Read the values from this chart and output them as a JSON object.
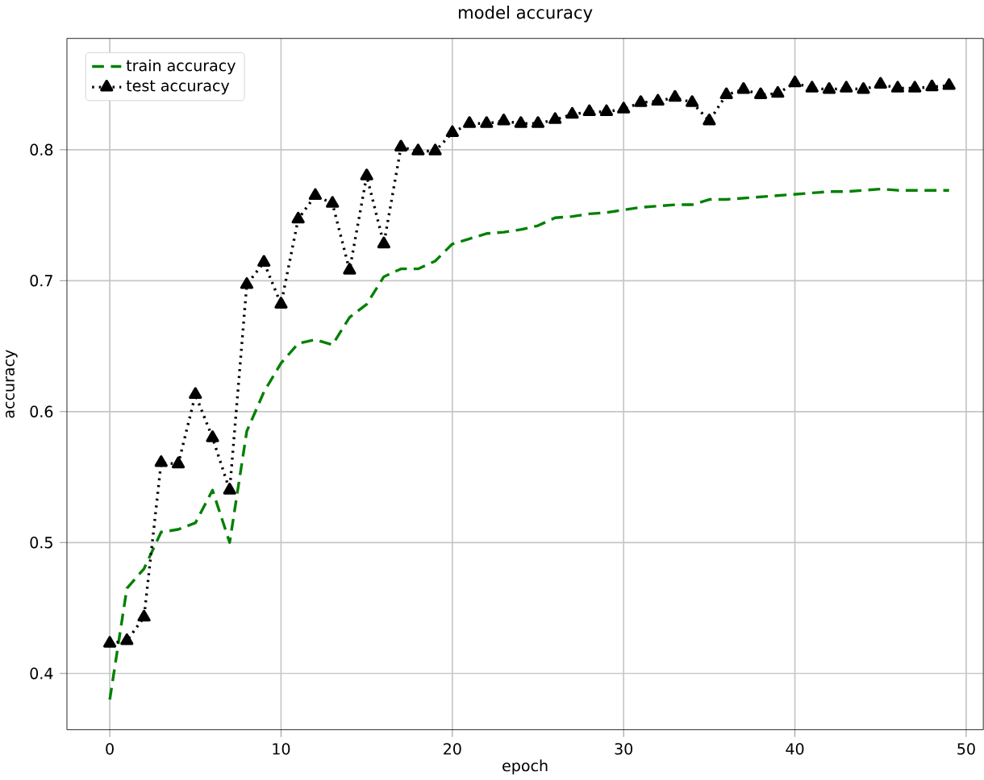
{
  "chart_data": {
    "type": "line",
    "title": "model accuracy",
    "xlabel": "epoch",
    "ylabel": "accuracy",
    "x": [
      0,
      1,
      2,
      3,
      4,
      5,
      6,
      7,
      8,
      9,
      10,
      11,
      12,
      13,
      14,
      15,
      16,
      17,
      18,
      19,
      20,
      21,
      22,
      23,
      24,
      25,
      26,
      27,
      28,
      29,
      30,
      31,
      32,
      33,
      34,
      35,
      36,
      37,
      38,
      39,
      40,
      41,
      42,
      43,
      44,
      45,
      46,
      47,
      48,
      49
    ],
    "series": [
      {
        "name": "train accuracy",
        "color": "#008000",
        "line_style": "dashed",
        "marker": "none",
        "values": [
          0.38,
          0.465,
          0.48,
          0.508,
          0.51,
          0.515,
          0.54,
          0.5,
          0.585,
          0.615,
          0.637,
          0.652,
          0.655,
          0.651,
          0.672,
          0.682,
          0.703,
          0.709,
          0.709,
          0.715,
          0.728,
          0.732,
          0.736,
          0.737,
          0.739,
          0.742,
          0.748,
          0.749,
          0.751,
          0.752,
          0.754,
          0.756,
          0.757,
          0.758,
          0.758,
          0.762,
          0.762,
          0.763,
          0.764,
          0.765,
          0.766,
          0.767,
          0.768,
          0.768,
          0.769,
          0.77,
          0.769,
          0.769,
          0.769,
          0.769
        ]
      },
      {
        "name": "test accuracy",
        "color": "#000000",
        "line_style": "dotted",
        "marker": "triangle",
        "values": [
          0.423,
          0.425,
          0.443,
          0.561,
          0.56,
          0.613,
          0.58,
          0.54,
          0.697,
          0.714,
          0.682,
          0.747,
          0.765,
          0.759,
          0.708,
          0.78,
          0.728,
          0.802,
          0.799,
          0.799,
          0.813,
          0.82,
          0.82,
          0.822,
          0.82,
          0.82,
          0.823,
          0.827,
          0.829,
          0.829,
          0.831,
          0.836,
          0.837,
          0.84,
          0.836,
          0.822,
          0.842,
          0.846,
          0.842,
          0.843,
          0.851,
          0.847,
          0.846,
          0.847,
          0.846,
          0.85,
          0.847,
          0.847,
          0.848,
          0.849
        ]
      }
    ],
    "xlim": [
      -2.5,
      51
    ],
    "ylim": [
      0.357,
      0.885
    ],
    "xticks": [
      0,
      10,
      20,
      30,
      40,
      50
    ],
    "yticks": [
      {
        "value": 0.4,
        "label": "0.4"
      },
      {
        "value": 0.5,
        "label": "0.5"
      },
      {
        "value": 0.6,
        "label": "0.6"
      },
      {
        "value": 0.7,
        "label": "0.7"
      },
      {
        "value": 0.8,
        "label": "0.8"
      }
    ],
    "grid": true,
    "legend": "top left"
  }
}
